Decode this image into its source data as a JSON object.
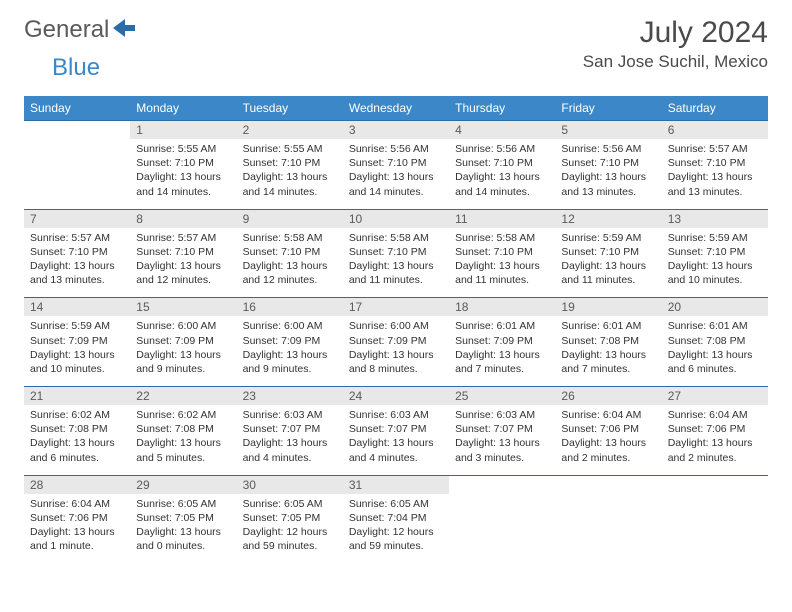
{
  "logo": {
    "part1": "General",
    "part2": "Blue"
  },
  "month_title": "July 2024",
  "location": "San Jose Suchil, Mexico",
  "colors": {
    "header_bg": "#3b87c8",
    "header_text": "#ffffff",
    "row_border": "#2a6ca8",
    "day_num_bg": "#e8e8e8",
    "day_num_text": "#5a5a5a"
  },
  "day_headers": [
    "Sunday",
    "Monday",
    "Tuesday",
    "Wednesday",
    "Thursday",
    "Friday",
    "Saturday"
  ],
  "weeks": [
    [
      {
        "num": "",
        "lines": [
          "",
          "",
          "",
          ""
        ]
      },
      {
        "num": "1",
        "lines": [
          "Sunrise: 5:55 AM",
          "Sunset: 7:10 PM",
          "Daylight: 13 hours",
          "and 14 minutes."
        ]
      },
      {
        "num": "2",
        "lines": [
          "Sunrise: 5:55 AM",
          "Sunset: 7:10 PM",
          "Daylight: 13 hours",
          "and 14 minutes."
        ]
      },
      {
        "num": "3",
        "lines": [
          "Sunrise: 5:56 AM",
          "Sunset: 7:10 PM",
          "Daylight: 13 hours",
          "and 14 minutes."
        ]
      },
      {
        "num": "4",
        "lines": [
          "Sunrise: 5:56 AM",
          "Sunset: 7:10 PM",
          "Daylight: 13 hours",
          "and 14 minutes."
        ]
      },
      {
        "num": "5",
        "lines": [
          "Sunrise: 5:56 AM",
          "Sunset: 7:10 PM",
          "Daylight: 13 hours",
          "and 13 minutes."
        ]
      },
      {
        "num": "6",
        "lines": [
          "Sunrise: 5:57 AM",
          "Sunset: 7:10 PM",
          "Daylight: 13 hours",
          "and 13 minutes."
        ]
      }
    ],
    [
      {
        "num": "7",
        "lines": [
          "Sunrise: 5:57 AM",
          "Sunset: 7:10 PM",
          "Daylight: 13 hours",
          "and 13 minutes."
        ]
      },
      {
        "num": "8",
        "lines": [
          "Sunrise: 5:57 AM",
          "Sunset: 7:10 PM",
          "Daylight: 13 hours",
          "and 12 minutes."
        ]
      },
      {
        "num": "9",
        "lines": [
          "Sunrise: 5:58 AM",
          "Sunset: 7:10 PM",
          "Daylight: 13 hours",
          "and 12 minutes."
        ]
      },
      {
        "num": "10",
        "lines": [
          "Sunrise: 5:58 AM",
          "Sunset: 7:10 PM",
          "Daylight: 13 hours",
          "and 11 minutes."
        ]
      },
      {
        "num": "11",
        "lines": [
          "Sunrise: 5:58 AM",
          "Sunset: 7:10 PM",
          "Daylight: 13 hours",
          "and 11 minutes."
        ]
      },
      {
        "num": "12",
        "lines": [
          "Sunrise: 5:59 AM",
          "Sunset: 7:10 PM",
          "Daylight: 13 hours",
          "and 11 minutes."
        ]
      },
      {
        "num": "13",
        "lines": [
          "Sunrise: 5:59 AM",
          "Sunset: 7:10 PM",
          "Daylight: 13 hours",
          "and 10 minutes."
        ]
      }
    ],
    [
      {
        "num": "14",
        "lines": [
          "Sunrise: 5:59 AM",
          "Sunset: 7:09 PM",
          "Daylight: 13 hours",
          "and 10 minutes."
        ]
      },
      {
        "num": "15",
        "lines": [
          "Sunrise: 6:00 AM",
          "Sunset: 7:09 PM",
          "Daylight: 13 hours",
          "and 9 minutes."
        ]
      },
      {
        "num": "16",
        "lines": [
          "Sunrise: 6:00 AM",
          "Sunset: 7:09 PM",
          "Daylight: 13 hours",
          "and 9 minutes."
        ]
      },
      {
        "num": "17",
        "lines": [
          "Sunrise: 6:00 AM",
          "Sunset: 7:09 PM",
          "Daylight: 13 hours",
          "and 8 minutes."
        ]
      },
      {
        "num": "18",
        "lines": [
          "Sunrise: 6:01 AM",
          "Sunset: 7:09 PM",
          "Daylight: 13 hours",
          "and 7 minutes."
        ]
      },
      {
        "num": "19",
        "lines": [
          "Sunrise: 6:01 AM",
          "Sunset: 7:08 PM",
          "Daylight: 13 hours",
          "and 7 minutes."
        ]
      },
      {
        "num": "20",
        "lines": [
          "Sunrise: 6:01 AM",
          "Sunset: 7:08 PM",
          "Daylight: 13 hours",
          "and 6 minutes."
        ]
      }
    ],
    [
      {
        "num": "21",
        "lines": [
          "Sunrise: 6:02 AM",
          "Sunset: 7:08 PM",
          "Daylight: 13 hours",
          "and 6 minutes."
        ]
      },
      {
        "num": "22",
        "lines": [
          "Sunrise: 6:02 AM",
          "Sunset: 7:08 PM",
          "Daylight: 13 hours",
          "and 5 minutes."
        ]
      },
      {
        "num": "23",
        "lines": [
          "Sunrise: 6:03 AM",
          "Sunset: 7:07 PM",
          "Daylight: 13 hours",
          "and 4 minutes."
        ]
      },
      {
        "num": "24",
        "lines": [
          "Sunrise: 6:03 AM",
          "Sunset: 7:07 PM",
          "Daylight: 13 hours",
          "and 4 minutes."
        ]
      },
      {
        "num": "25",
        "lines": [
          "Sunrise: 6:03 AM",
          "Sunset: 7:07 PM",
          "Daylight: 13 hours",
          "and 3 minutes."
        ]
      },
      {
        "num": "26",
        "lines": [
          "Sunrise: 6:04 AM",
          "Sunset: 7:06 PM",
          "Daylight: 13 hours",
          "and 2 minutes."
        ]
      },
      {
        "num": "27",
        "lines": [
          "Sunrise: 6:04 AM",
          "Sunset: 7:06 PM",
          "Daylight: 13 hours",
          "and 2 minutes."
        ]
      }
    ],
    [
      {
        "num": "28",
        "lines": [
          "Sunrise: 6:04 AM",
          "Sunset: 7:06 PM",
          "Daylight: 13 hours",
          "and 1 minute."
        ]
      },
      {
        "num": "29",
        "lines": [
          "Sunrise: 6:05 AM",
          "Sunset: 7:05 PM",
          "Daylight: 13 hours",
          "and 0 minutes."
        ]
      },
      {
        "num": "30",
        "lines": [
          "Sunrise: 6:05 AM",
          "Sunset: 7:05 PM",
          "Daylight: 12 hours",
          "and 59 minutes."
        ]
      },
      {
        "num": "31",
        "lines": [
          "Sunrise: 6:05 AM",
          "Sunset: 7:04 PM",
          "Daylight: 12 hours",
          "and 59 minutes."
        ]
      },
      {
        "num": "",
        "lines": [
          "",
          "",
          "",
          ""
        ]
      },
      {
        "num": "",
        "lines": [
          "",
          "",
          "",
          ""
        ]
      },
      {
        "num": "",
        "lines": [
          "",
          "",
          "",
          ""
        ]
      }
    ]
  ]
}
